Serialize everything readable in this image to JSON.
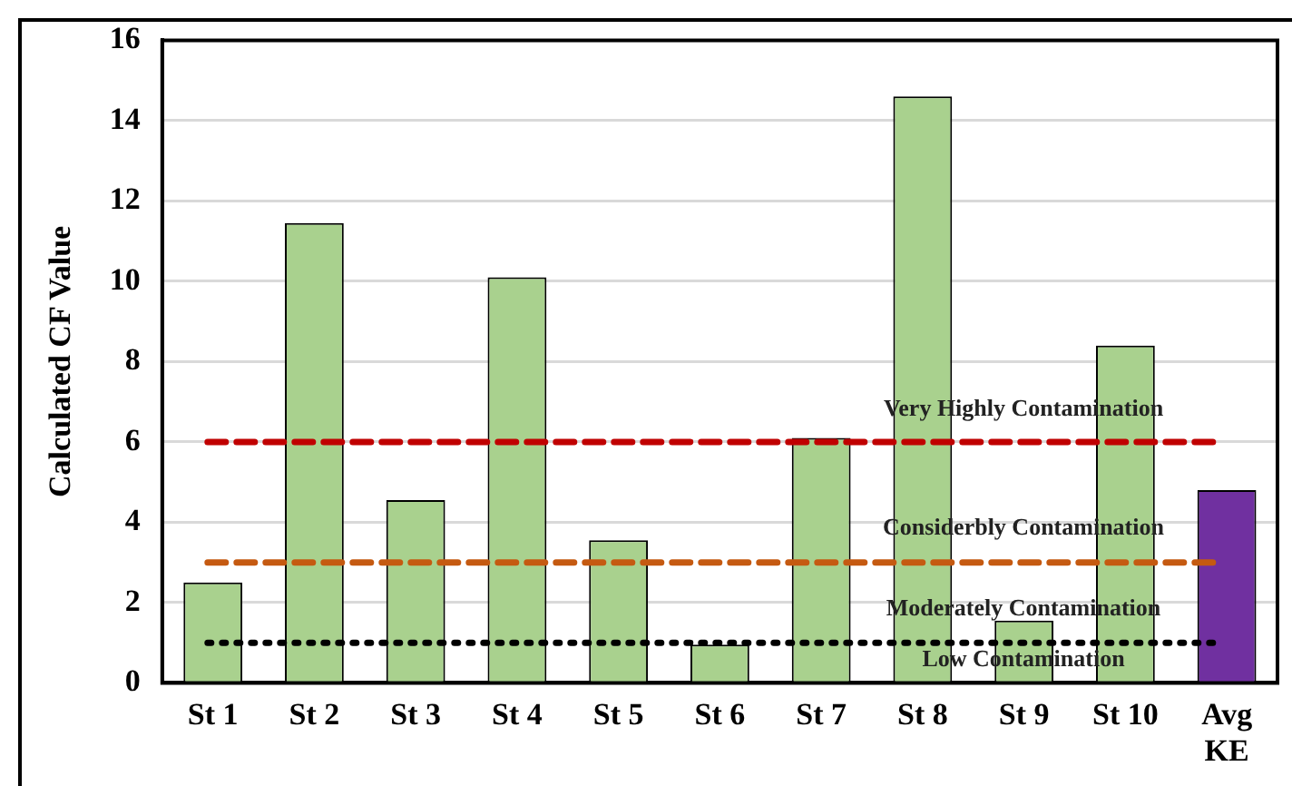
{
  "chart_data": {
    "type": "bar",
    "ylabel": "Calculated CF Value",
    "categories": [
      "St 1",
      "St 2",
      "St 3",
      "St 4",
      "St 5",
      "St 6",
      "St 7",
      "St 8",
      "St 9",
      "St 10",
      "Avg KE"
    ],
    "values": [
      2.5,
      11.45,
      4.55,
      10.1,
      3.55,
      0.95,
      6.1,
      14.6,
      1.55,
      8.4,
      4.8
    ],
    "colors": [
      "#a9d18e",
      "#a9d18e",
      "#a9d18e",
      "#a9d18e",
      "#a9d18e",
      "#a9d18e",
      "#a9d18e",
      "#a9d18e",
      "#a9d18e",
      "#a9d18e",
      "#7030a0"
    ],
    "ylim": [
      0,
      16
    ],
    "yticks": [
      0,
      2,
      4,
      6,
      8,
      10,
      12,
      14,
      16
    ],
    "grid": "y",
    "legend": false,
    "ref_lines": [
      {
        "axis": "y",
        "value": 6,
        "color": "#c00000",
        "line_style": "dashed"
      },
      {
        "axis": "y",
        "value": 3,
        "color": "#c55a11",
        "line_style": "dashed"
      },
      {
        "axis": "y",
        "value": 1,
        "color": "#000000",
        "line_style": "dotted"
      }
    ],
    "annotations": [
      "Very Highly Contamination",
      "Considerbly Contamination",
      "Moderately Contamination",
      "Low Contamination"
    ]
  }
}
